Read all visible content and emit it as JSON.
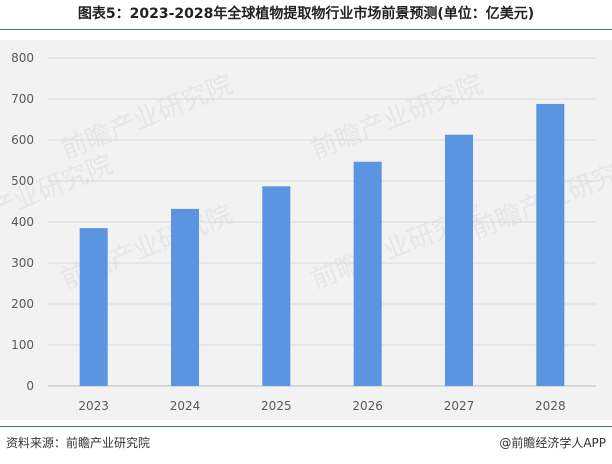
{
  "header": {
    "title": "图表5：2023-2028年全球植物提取物行业市场前景预测(单位：亿美元)"
  },
  "footer": {
    "source": "资料来源：前瞻产业研究院",
    "credit": "@前瞻经济学人APP"
  },
  "watermark": {
    "text": "前瞻产业研究院"
  },
  "colors": {
    "bar": "#5b94e0",
    "grid": "#d9d9d9",
    "axis_text": "#595959",
    "title_rule": "#4a6fa5"
  },
  "chart_data": {
    "type": "bar",
    "categories": [
      "2023",
      "2024",
      "2025",
      "2026",
      "2027",
      "2028"
    ],
    "values": [
      385,
      432,
      487,
      547,
      613,
      688
    ],
    "yticks": [
      "0",
      "100",
      "200",
      "300",
      "400",
      "500",
      "600",
      "700",
      "800"
    ],
    "ylim": [
      0,
      800
    ],
    "grid": true,
    "legend": "none"
  }
}
